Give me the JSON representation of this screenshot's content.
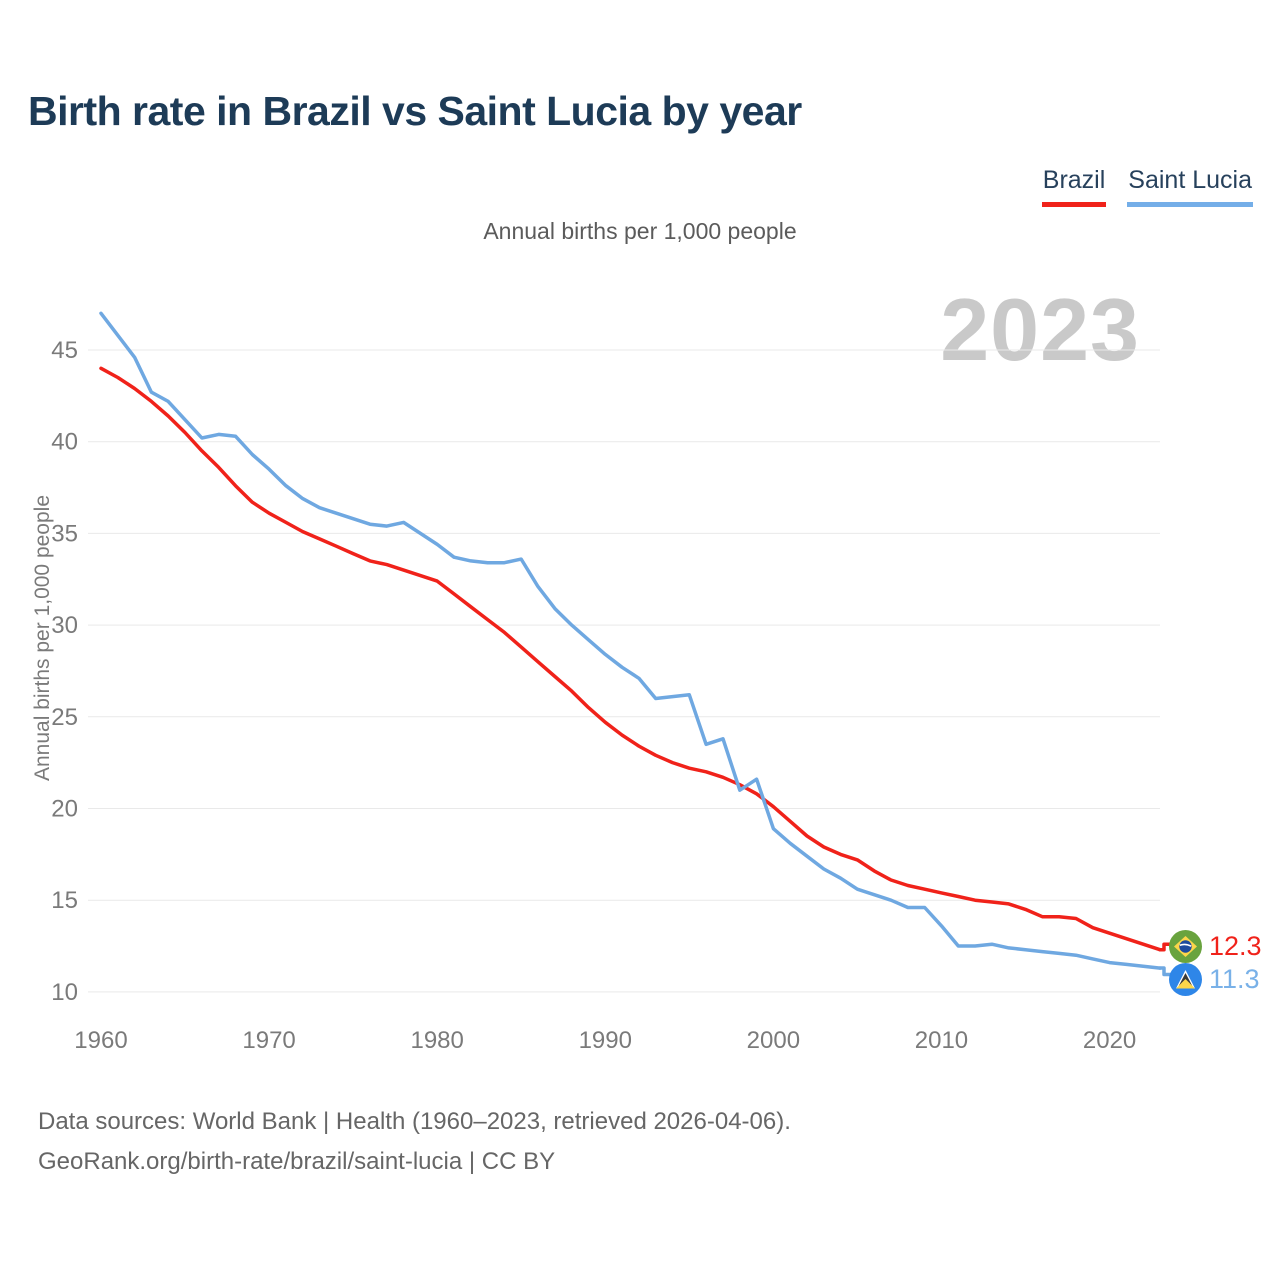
{
  "title": "Birth rate in Brazil vs Saint Lucia by year",
  "subtitle": "Annual births per 1,000 people",
  "y_axis_label": "Annual births per 1,000 people",
  "watermark": "2023",
  "legend": {
    "brazil": {
      "label": "Brazil",
      "color": "#f0221a"
    },
    "saint_lucia": {
      "label": "Saint Lucia",
      "color": "#74aee8"
    }
  },
  "end_labels": {
    "brazil": {
      "value": "12.3",
      "color": "#f0221a"
    },
    "saint_lucia": {
      "value": "11.3",
      "color": "#79b1e8"
    }
  },
  "footer": {
    "line1": "Data sources: World Bank | Health (1960–2023, retrieved 2026-04-06).",
    "line2": "GeoRank.org/birth-rate/brazil/saint-lucia | CC BY"
  },
  "chart_data": {
    "type": "line",
    "title": "Birth rate in Brazil vs Saint Lucia by year",
    "subtitle": "Annual births per 1,000 people",
    "ylabel": "Annual births per 1,000 people",
    "xlabel": "",
    "grid": true,
    "legend_position": "top-right",
    "xlim": [
      1960,
      2023
    ],
    "ylim": [
      8.5,
      48
    ],
    "xticks": [
      1960,
      1970,
      1980,
      1990,
      2000,
      2010,
      2020
    ],
    "yticks": [
      10,
      15,
      20,
      25,
      30,
      35,
      40,
      45
    ],
    "x": [
      1960,
      1961,
      1962,
      1963,
      1964,
      1965,
      1966,
      1967,
      1968,
      1969,
      1970,
      1971,
      1972,
      1973,
      1974,
      1975,
      1976,
      1977,
      1978,
      1979,
      1980,
      1981,
      1982,
      1983,
      1984,
      1985,
      1986,
      1987,
      1988,
      1989,
      1990,
      1991,
      1992,
      1993,
      1994,
      1995,
      1996,
      1997,
      1998,
      1999,
      2000,
      2001,
      2002,
      2003,
      2004,
      2005,
      2006,
      2007,
      2008,
      2009,
      2010,
      2011,
      2012,
      2013,
      2014,
      2015,
      2016,
      2017,
      2018,
      2019,
      2020,
      2021,
      2022,
      2023
    ],
    "series": [
      {
        "name": "Brazil",
        "color": "#f0221a",
        "final_value": 12.3,
        "values": [
          44.0,
          43.5,
          42.9,
          42.2,
          41.4,
          40.5,
          39.5,
          38.6,
          37.6,
          36.7,
          36.1,
          35.6,
          35.1,
          34.7,
          34.3,
          33.9,
          33.5,
          33.3,
          33.0,
          32.7,
          32.4,
          31.7,
          31.0,
          30.3,
          29.6,
          28.8,
          28.0,
          27.2,
          26.4,
          25.5,
          24.7,
          24.0,
          23.4,
          22.9,
          22.5,
          22.2,
          22.0,
          21.7,
          21.3,
          20.8,
          20.1,
          19.3,
          18.5,
          17.9,
          17.5,
          17.2,
          16.6,
          16.1,
          15.8,
          15.6,
          15.4,
          15.2,
          15.0,
          14.9,
          14.8,
          14.5,
          14.1,
          14.1,
          14.0,
          13.5,
          13.2,
          12.9,
          12.6,
          12.3
        ]
      },
      {
        "name": "Saint Lucia",
        "color": "#6fa8e1",
        "final_value": 11.3,
        "values": [
          47.0,
          45.8,
          44.6,
          42.7,
          42.2,
          41.2,
          40.2,
          40.4,
          40.3,
          39.3,
          38.5,
          37.6,
          36.9,
          36.4,
          36.1,
          35.8,
          35.5,
          35.4,
          35.6,
          35.0,
          34.4,
          33.7,
          33.5,
          33.4,
          33.4,
          33.6,
          32.1,
          30.9,
          30.0,
          29.2,
          28.4,
          27.7,
          27.1,
          26.0,
          26.1,
          26.2,
          23.5,
          23.8,
          21.0,
          21.6,
          18.9,
          18.1,
          17.4,
          16.7,
          16.2,
          15.6,
          15.3,
          15.0,
          14.6,
          14.6,
          13.6,
          12.5,
          12.5,
          12.6,
          12.4,
          12.3,
          12.2,
          12.1,
          12.0,
          11.8,
          11.6,
          11.5,
          11.4,
          11.3
        ]
      }
    ]
  }
}
